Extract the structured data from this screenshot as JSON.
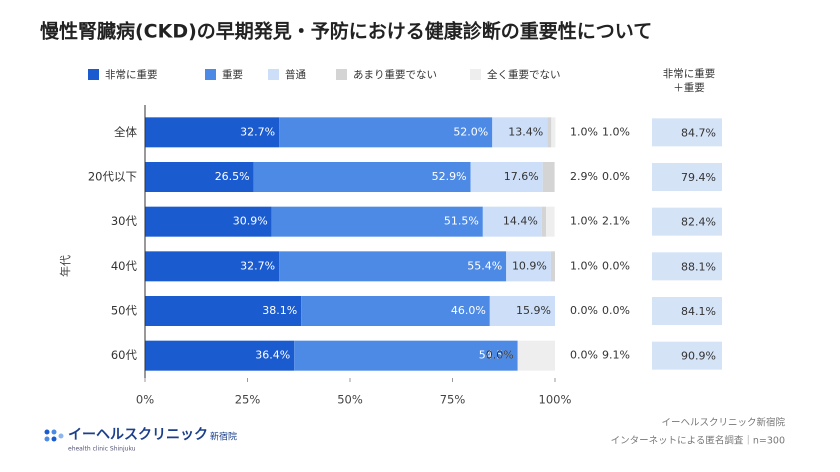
{
  "chart_data": {
    "type": "stacked-barh",
    "title": "慢性腎臓病(CKD)の早期発見・予防における健康診断の重要性について",
    "ylabel": "年代",
    "categories": [
      "全体",
      "20代以下",
      "30代",
      "40代",
      "50代",
      "60代"
    ],
    "series": [
      {
        "name": "非常に重要",
        "color": "#1b5bd0",
        "values": [
          32.7,
          26.5,
          30.9,
          32.7,
          38.1,
          36.4
        ],
        "value_labels": [
          "32.7%",
          "26.5%",
          "30.9%",
          "32.7%",
          "38.1%",
          "36.4%"
        ]
      },
      {
        "name": "重要",
        "color": "#4d8ae6",
        "values": [
          52.0,
          52.9,
          51.5,
          55.4,
          46.0,
          54.5
        ],
        "value_labels": [
          "52.0%",
          "52.9%",
          "51.5%",
          "55.4%",
          "46.0%",
          "54.5%"
        ]
      },
      {
        "name": "普通",
        "color": "#cddff8",
        "values": [
          13.4,
          17.6,
          14.4,
          10.9,
          15.9,
          0.0
        ],
        "value_labels": [
          "13.4%",
          "17.6%",
          "14.4%",
          "10.9%",
          "15.9%",
          "0.0%"
        ]
      },
      {
        "name": "あまり重要でない",
        "color": "#d4d4d4",
        "values": [
          1.0,
          2.9,
          1.0,
          1.0,
          0.0,
          0.0
        ],
        "value_labels": [
          "1.0%",
          "2.9%",
          "1.0%",
          "1.0%",
          "0.0%",
          "0.0%"
        ]
      },
      {
        "name": "全く重要でない",
        "color": "#eeeeee",
        "values": [
          1.0,
          0.0,
          2.1,
          0.0,
          0.0,
          9.1
        ],
        "value_labels": [
          "1.0%",
          "0.0%",
          "2.1%",
          "0.0%",
          "0.0%",
          "9.1%"
        ]
      }
    ],
    "totals": {
      "name": "非常に重要＋重要",
      "color": "#d5e3f7",
      "values": [
        84.7,
        79.4,
        82.4,
        88.1,
        84.1,
        90.9
      ],
      "value_labels": [
        "84.7%",
        "79.4%",
        "82.4%",
        "88.1%",
        "84.1%",
        "90.9%"
      ]
    },
    "xlim": [
      0,
      100
    ],
    "xticks": [
      {
        "value": 0,
        "label": "0%"
      },
      {
        "value": 25,
        "label": "25%"
      },
      {
        "value": 50,
        "label": "50%"
      },
      {
        "value": 75,
        "label": "75%"
      },
      {
        "value": 100,
        "label": "100%"
      }
    ],
    "grid": false
  },
  "source": [
    "イーヘルスクリニック新宿院",
    "インターネットによる匿名調査｜n=300"
  ],
  "logo": {
    "name": "イーヘルスクリニック",
    "suffix": "新宿院",
    "tagline": "ehealth clinic Shinjuku"
  }
}
